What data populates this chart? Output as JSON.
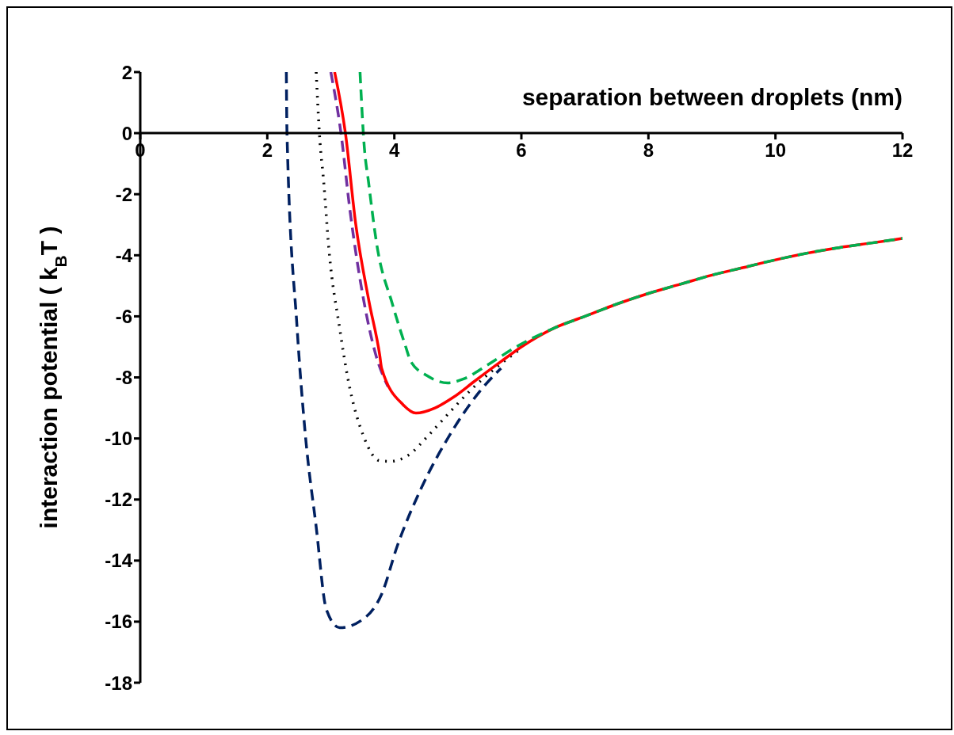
{
  "chart_data": {
    "type": "line",
    "xlabel": "separation between droplets (nm)",
    "ylabel": "interaction potential ( k$_{B}$T )",
    "xlim": [
      0,
      12
    ],
    "xticks": [
      0,
      2,
      4,
      6,
      8,
      10,
      12
    ],
    "ylim": [
      -18,
      2
    ],
    "yticks": [
      2,
      0,
      -2,
      -4,
      -6,
      -8,
      -10,
      -12,
      -14,
      -16,
      -18
    ],
    "marker": "none",
    "series": [
      {
        "color": "#002060",
        "line_style": "dashed",
        "x": [
          2.3,
          2.31,
          2.47,
          2.6,
          2.77,
          2.93,
          3.14,
          3.52,
          3.8,
          4.05,
          4.43,
          4.84,
          5.34,
          5.68
        ],
        "values": [
          2,
          0,
          -6.4,
          -9.9,
          -12.9,
          -15.6,
          -16.2,
          -15.9,
          -15.1,
          -13.5,
          -11.6,
          -10.0,
          -8.47,
          -7.7
        ]
      },
      {
        "color": "#000000",
        "line_style": "dotted",
        "x": [
          2.77,
          2.82,
          2.89,
          2.97,
          3.14,
          3.27,
          3.52,
          3.77,
          3.93,
          4.22,
          4.55,
          4.89,
          5.21,
          5.59,
          6
        ],
        "values": [
          2,
          0,
          -1.64,
          -3.8,
          -6.4,
          -8.05,
          -9.95,
          -10.73,
          -10.75,
          -10.55,
          -9.87,
          -9.1,
          -8.4,
          -7.7,
          -7.05
        ]
      },
      {
        "color": "#7030a0",
        "line_style": "dashed",
        "x": [
          3.0,
          3.16,
          3.3,
          3.52,
          3.7,
          3.9
        ],
        "values": [
          2,
          0,
          -2.5,
          -5.5,
          -7.2,
          -8.3
        ]
      },
      {
        "color": "#ff0000",
        "line_style": "solid",
        "x": [
          3.06,
          3.23,
          3.39,
          3.6,
          3.77,
          3.8,
          4.14,
          4.34,
          4.64,
          4.93,
          5.26,
          5.68,
          6,
          6.5,
          7,
          7.5,
          8,
          8.5,
          9,
          9.5,
          10,
          10.5,
          11,
          11.5,
          12
        ],
        "values": [
          2,
          0,
          -2.94,
          -5.5,
          -7.27,
          -7.7,
          -8.9,
          -9.17,
          -9.0,
          -8.65,
          -8.13,
          -7.48,
          -7.0,
          -6.4,
          -6.0,
          -5.6,
          -5.25,
          -4.95,
          -4.65,
          -4.4,
          -4.15,
          -3.93,
          -3.75,
          -3.6,
          -3.45
        ]
      },
      {
        "color": "#00b050",
        "line_style": "dashed",
        "x": [
          3.46,
          3.52,
          3.6,
          3.72,
          3.97,
          4.18,
          4.26,
          4.52,
          4.84,
          5.09,
          5.46,
          5.92,
          6.5,
          7,
          7.5,
          8,
          8.5,
          9,
          9.5,
          10,
          10.5,
          11,
          11.5,
          12
        ],
        "values": [
          2,
          -0.26,
          -1.7,
          -3.6,
          -5.6,
          -7.0,
          -7.48,
          -7.95,
          -8.18,
          -8.05,
          -7.6,
          -7.0,
          -6.4,
          -6.0,
          -5.6,
          -5.25,
          -4.95,
          -4.65,
          -4.4,
          -4.15,
          -3.93,
          -3.75,
          -3.6,
          -3.45
        ]
      }
    ]
  }
}
